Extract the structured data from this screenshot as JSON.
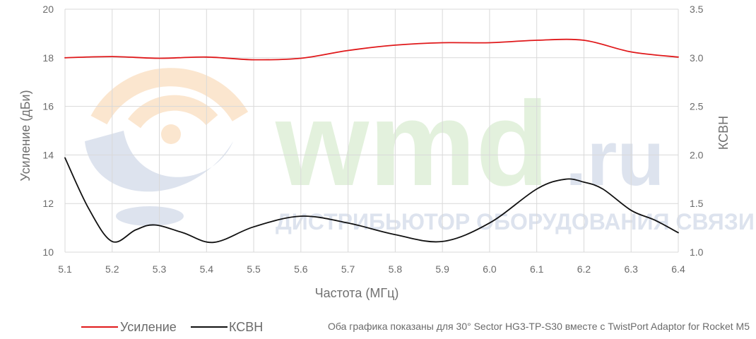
{
  "watermark": {
    "brand": "wmd",
    "domain": ".ru",
    "tagline": "ДИСТРИБЬЮТОР ОБОРУДОВАНИЯ СВЯЗИ",
    "colors": {
      "green": "#e3f1dd",
      "blue": "#dde3ee",
      "orange": "#fbe6cf"
    }
  },
  "legend": [
    {
      "label": "Усиление",
      "color": "#e0191b"
    },
    {
      "label": "КСВН",
      "color": "#111111"
    }
  ],
  "note": "Оба графика показаны для 30° Sector HG3-TP-S30 вместе с TwistPort Adaptor for Rocket M5",
  "chart_data": {
    "type": "line",
    "xlabel": "Частота (МГц)",
    "ylabel": "Усиление (дБи)",
    "y2label": "КСВН",
    "x_ticks": [
      "5.1",
      "5.2",
      "5.3",
      "5.4",
      "5.5",
      "5.6",
      "5.7",
      "5.8",
      "5.9",
      "6.0",
      "6.1",
      "6.2",
      "6.3",
      "6.4"
    ],
    "y_ticks": [
      "10",
      "12",
      "14",
      "16",
      "18",
      "20"
    ],
    "y2_ticks": [
      "1.0",
      "1.5",
      "2.0",
      "2.5",
      "3.0",
      "3.5"
    ],
    "xlim": [
      5.1,
      6.4
    ],
    "ylim": [
      10,
      20
    ],
    "y2lim": [
      1.0,
      3.5
    ],
    "grid": true,
    "legend_position": "bottom-left",
    "series": [
      {
        "name": "Усиление",
        "axis": "left",
        "color": "#e0191b",
        "x": [
          5.1,
          5.2,
          5.3,
          5.4,
          5.5,
          5.6,
          5.7,
          5.8,
          5.9,
          6.0,
          6.1,
          6.2,
          6.3,
          6.4
        ],
        "values": [
          18.0,
          18.05,
          17.98,
          18.03,
          17.92,
          17.98,
          18.3,
          18.52,
          18.62,
          18.62,
          18.72,
          18.72,
          18.24,
          18.03
        ]
      },
      {
        "name": "КСВН",
        "axis": "right",
        "color": "#111111",
        "x": [
          5.1,
          5.15,
          5.2,
          5.25,
          5.29,
          5.35,
          5.415,
          5.5,
          5.6,
          5.7,
          5.8,
          5.9,
          6.0,
          6.1,
          6.16,
          6.2,
          6.24,
          6.3,
          6.35,
          6.4
        ],
        "values": [
          1.97,
          1.45,
          1.11,
          1.23,
          1.28,
          1.2,
          1.1,
          1.26,
          1.37,
          1.3,
          1.18,
          1.11,
          1.3,
          1.65,
          1.75,
          1.72,
          1.65,
          1.43,
          1.33,
          1.2
        ]
      }
    ]
  }
}
